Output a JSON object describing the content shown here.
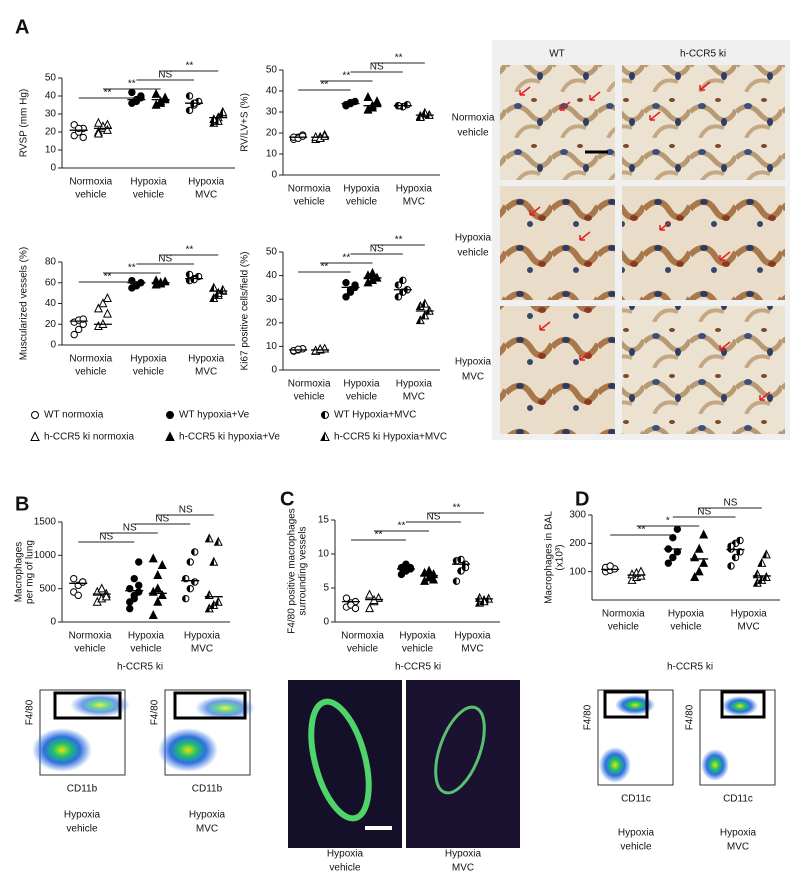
{
  "panel_labels": [
    "A",
    "B",
    "C",
    "D"
  ],
  "legend": [
    {
      "label": "WT normoxia",
      "marker": "open-circle"
    },
    {
      "label": "WT hypoxia+Ve",
      "marker": "filled-circle"
    },
    {
      "label": "WT Hypoxia+MVC",
      "marker": "half-circle"
    },
    {
      "label": "h-CCR5 ki normoxia",
      "marker": "open-triangle"
    },
    {
      "label": "h-CCR5 ki hypoxia+Ve",
      "marker": "filled-triangle"
    },
    {
      "label": "h-CCR5 ki Hypoxia+MVC",
      "marker": "half-triangle"
    }
  ],
  "micrographs": {
    "columns": [
      "WT",
      "h-CCR5 ki"
    ],
    "rows": [
      [
        "Normoxia",
        "vehicle"
      ],
      [
        "Hypoxia",
        "vehicle"
      ],
      [
        "Hypoxia",
        "MVC"
      ]
    ]
  },
  "bottom_panels": [
    {
      "title": "h-CCR5 ki",
      "images": [
        {
          "ylabel": "F4/80",
          "xlabel": "CD11b",
          "caption": [
            "Hypoxia",
            "vehicle"
          ]
        },
        {
          "ylabel": "F4/80",
          "xlabel": "CD11b",
          "caption": [
            "Hypoxia",
            "MVC"
          ]
        }
      ]
    },
    {
      "title": "h-CCR5 ki",
      "images": [
        {
          "caption": [
            "Hypoxia",
            "vehicle"
          ]
        },
        {
          "caption": [
            "Hypoxia",
            "MVC"
          ]
        }
      ]
    },
    {
      "title": "h-CCR5 ki",
      "images": [
        {
          "ylabel": "F4/80",
          "xlabel": "CD11c",
          "caption": [
            "Hypoxia",
            "vehicle"
          ]
        },
        {
          "ylabel": "F4/80",
          "xlabel": "CD11c",
          "caption": [
            "Hypoxia",
            "MVC"
          ]
        }
      ]
    }
  ],
  "chart_data": [
    {
      "type": "strip",
      "ylabel": [
        "RVSP (mm Hg)"
      ],
      "categories": [
        [
          "Normoxia",
          "vehicle"
        ],
        [
          "Hypoxia",
          "vehicle"
        ],
        [
          "Hypoxia",
          "MVC"
        ]
      ],
      "ylim": [
        0,
        50
      ],
      "yticks": [
        0,
        10,
        20,
        30,
        40,
        50
      ],
      "series": [
        {
          "color": "#000",
          "markers": [
            "open-circle",
            "filled-circle",
            "half-circle"
          ],
          "values": [
            [
              18,
              20,
              22,
              24,
              22,
              17
            ],
            [
              36,
              38,
              40,
              42,
              37,
              39
            ],
            [
              32,
              35,
              37,
              40,
              36
            ]
          ],
          "medians": [
            21,
            38,
            36
          ]
        },
        {
          "color": "#000",
          "markers": [
            "open-triangle",
            "filled-triangle",
            "half-triangle"
          ],
          "values": [
            [
              20,
              22,
              24,
              19,
              23,
              21,
              25
            ],
            [
              35,
              37,
              39,
              41,
              36,
              38
            ],
            [
              25,
              28,
              30,
              27,
              26,
              31
            ]
          ],
          "medians": [
            22,
            38,
            28
          ]
        }
      ],
      "comparisons": [
        {
          "label": "**",
          "between": [
            0,
            2
          ]
        },
        {
          "label": "**",
          "between": [
            1,
            3
          ]
        },
        {
          "label": "NS",
          "between": [
            2,
            4
          ]
        },
        {
          "label": "**",
          "between": [
            3,
            5
          ]
        }
      ]
    },
    {
      "type": "strip",
      "ylabel": [
        "RV/LV+S  (%)"
      ],
      "categories": [
        [
          "Normoxia",
          "vehicle"
        ],
        [
          "Hypoxia",
          "vehicle"
        ],
        [
          "Hypoxia",
          "MVC"
        ]
      ],
      "ylim": [
        0,
        50
      ],
      "yticks": [
        0,
        10,
        20,
        30,
        40,
        50
      ],
      "series": [
        {
          "color": "#000",
          "markers": [
            "open-circle",
            "filled-circle",
            "half-circle"
          ],
          "values": [
            [
              17,
              18,
              19,
              18,
              17.5,
              18.5
            ],
            [
              33,
              34,
              35,
              33.5,
              34.5
            ],
            [
              33,
              32.5,
              33.5,
              33
            ]
          ],
          "medians": [
            18,
            34,
            33
          ]
        },
        {
          "color": "#000",
          "markers": [
            "open-triangle",
            "filled-triangle",
            "half-triangle"
          ],
          "values": [
            [
              17,
              18,
              19,
              18,
              17.5,
              18.5
            ],
            [
              31,
              33,
              35,
              37,
              32,
              34
            ],
            [
              28,
              29,
              28.5,
              27.5,
              29.5
            ]
          ],
          "medians": [
            18,
            33,
            28.5
          ]
        }
      ],
      "comparisons": [
        {
          "label": "**",
          "between": [
            0,
            2
          ]
        },
        {
          "label": "**",
          "between": [
            1,
            3
          ]
        },
        {
          "label": "NS",
          "between": [
            2,
            4
          ]
        },
        {
          "label": "**",
          "between": [
            3,
            5
          ]
        }
      ]
    },
    {
      "type": "strip",
      "ylabel": [
        "Muscularized vessels (%)"
      ],
      "categories": [
        [
          "Normoxia",
          "vehicle"
        ],
        [
          "Hypoxia",
          "vehicle"
        ],
        [
          "Hypoxia",
          "MVC"
        ]
      ],
      "ylim": [
        0,
        80
      ],
      "yticks": [
        0,
        20,
        40,
        60,
        80
      ],
      "series": [
        {
          "color": "#000",
          "markers": [
            "open-circle",
            "filled-circle",
            "half-circle"
          ],
          "values": [
            [
              10,
              15,
              20,
              22,
              24,
              25
            ],
            [
              55,
              58,
              60,
              62,
              57
            ],
            [
              62,
              64,
              66,
              68,
              63
            ]
          ],
          "medians": [
            23,
            60,
            64
          ]
        },
        {
          "color": "#000",
          "markers": [
            "open-triangle",
            "filled-triangle",
            "half-triangle"
          ],
          "values": [
            [
              18,
              20,
              30,
              35,
              40,
              45
            ],
            [
              58,
              60,
              61,
              62,
              59
            ],
            [
              45,
              48,
              52,
              55,
              50,
              53
            ]
          ],
          "medians": [
            20,
            60,
            52
          ]
        }
      ],
      "comparisons": [
        {
          "label": "**",
          "between": [
            0,
            2
          ]
        },
        {
          "label": "**",
          "between": [
            1,
            3
          ]
        },
        {
          "label": "NS",
          "between": [
            2,
            4
          ]
        },
        {
          "label": "**",
          "between": [
            3,
            5
          ]
        }
      ]
    },
    {
      "type": "strip",
      "ylabel": [
        "Ki67 positive cells/field (%)"
      ],
      "categories": [
        [
          "Normoxia",
          "vehicle"
        ],
        [
          "Hypoxia",
          "vehicle"
        ],
        [
          "Hypoxia",
          "MVC"
        ]
      ],
      "ylim": [
        0,
        50
      ],
      "yticks": [
        0,
        10,
        20,
        30,
        40,
        50
      ],
      "series": [
        {
          "color": "#000",
          "markers": [
            "open-circle",
            "filled-circle",
            "half-circle"
          ],
          "values": [
            [
              8,
              8.5,
              9,
              8.2,
              8.8
            ],
            [
              31,
              33,
              35,
              37,
              34,
              36
            ],
            [
              31,
              33,
              34,
              36,
              38
            ]
          ],
          "medians": [
            8.5,
            35,
            34
          ]
        },
        {
          "color": "#000",
          "markers": [
            "open-triangle",
            "filled-triangle",
            "half-triangle"
          ],
          "values": [
            [
              8,
              8.5,
              9,
              8.2,
              8.8
            ],
            [
              37,
              38,
              39,
              40,
              41
            ],
            [
              21,
              23,
              25,
              27,
              28
            ]
          ],
          "medians": [
            8.5,
            39,
            25
          ]
        }
      ],
      "comparisons": [
        {
          "label": "**",
          "between": [
            0,
            2
          ]
        },
        {
          "label": "**",
          "between": [
            1,
            3
          ]
        },
        {
          "label": "NS",
          "between": [
            2,
            4
          ]
        },
        {
          "label": "**",
          "between": [
            3,
            5
          ]
        }
      ]
    },
    {
      "type": "strip",
      "ylabel": [
        "Macrophages",
        "per mg of lung"
      ],
      "categories": [
        [
          "Normoxia",
          "vehicle"
        ],
        [
          "Hypoxia",
          "vehicle"
        ],
        [
          "Hypoxia",
          "MVC"
        ]
      ],
      "ylim": [
        0,
        1500
      ],
      "yticks": [
        0,
        500,
        1000,
        1500
      ],
      "series": [
        {
          "color": "#000",
          "markers": [
            "open-circle",
            "filled-circle",
            "half-circle"
          ],
          "values": [
            [
              450,
              550,
              600,
              650,
              400,
              600
            ],
            [
              200,
              350,
              450,
              500,
              650,
              900,
              300,
              400,
              550
            ],
            [
              350,
              500,
              600,
              650,
              900,
              1050
            ]
          ],
          "medians": [
            580,
            470,
            620
          ]
        },
        {
          "color": "#000",
          "markers": [
            "open-triangle",
            "filled-triangle",
            "half-triangle"
          ],
          "values": [
            [
              300,
              350,
              420,
              450,
              500,
              380
            ],
            [
              100,
              300,
              400,
              450,
              700,
              850,
              950,
              500
            ],
            [
              200,
              250,
              300,
              400,
              900,
              1200,
              1250
            ]
          ],
          "medians": [
            420,
            430,
            380
          ]
        }
      ],
      "comparisons": [
        {
          "label": "NS",
          "between": [
            0,
            2
          ]
        },
        {
          "label": "NS",
          "between": [
            1,
            3
          ]
        },
        {
          "label": "NS",
          "between": [
            2,
            4
          ]
        },
        {
          "label": "NS",
          "between": [
            3,
            5
          ]
        }
      ]
    },
    {
      "type": "strip",
      "ylabel": [
        "F4/80 positive macrophages",
        "surrounding vessels"
      ],
      "categories": [
        [
          "Normoxia",
          "vehicle"
        ],
        [
          "Hypoxia",
          "vehicle"
        ],
        [
          "Hypoxia",
          "MVC"
        ]
      ],
      "ylim": [
        0,
        15
      ],
      "yticks": [
        0,
        5,
        10,
        15
      ],
      "series": [
        {
          "color": "#000",
          "markers": [
            "open-circle",
            "filled-circle",
            "half-circle"
          ],
          "values": [
            [
              2.2,
              2.8,
              3,
              3.5,
              2.5,
              2
            ],
            [
              7,
              7.5,
              8,
              8,
              8.5,
              7.8
            ],
            [
              6,
              7.5,
              8.5,
              9,
              9.2,
              8
            ]
          ],
          "medians": [
            3,
            7.8,
            8.5
          ]
        },
        {
          "color": "#000",
          "markers": [
            "open-triangle",
            "filled-triangle",
            "half-triangle"
          ],
          "values": [
            [
              2,
              3,
              3.5,
              4,
              3.2
            ],
            [
              6,
              6.5,
              7,
              7.2,
              7.5,
              6.2
            ],
            [
              2.8,
              3.2,
              3.4,
              3.5,
              3
            ]
          ],
          "medians": [
            3.3,
            6.8,
            3.4
          ]
        }
      ],
      "comparisons": [
        {
          "label": "**",
          "between": [
            0,
            2
          ]
        },
        {
          "label": "**",
          "between": [
            1,
            3
          ]
        },
        {
          "label": "NS",
          "between": [
            2,
            4
          ]
        },
        {
          "label": "**",
          "between": [
            3,
            5
          ]
        }
      ]
    },
    {
      "type": "strip",
      "ylabel": [
        "Macrophages in BAL",
        "(x10³)"
      ],
      "categories": [
        [
          "Normoxia",
          "vehicle"
        ],
        [
          "Hypoxia",
          "vehicle"
        ],
        [
          "Hypoxia",
          "MVC"
        ]
      ],
      "ylim": [
        0,
        300
      ],
      "yticks": [
        100,
        200,
        300
      ],
      "series": [
        {
          "color": "#000",
          "markers": [
            "open-circle",
            "filled-circle",
            "half-circle"
          ],
          "values": [
            [
              100,
              105,
              110,
              115,
              120
            ],
            [
              130,
              150,
              170,
              180,
              220,
              250
            ],
            [
              120,
              150,
              170,
              180,
              200,
              210,
              190
            ]
          ],
          "medians": [
            108,
            180,
            178
          ]
        },
        {
          "color": "#000",
          "markers": [
            "open-triangle",
            "filled-triangle",
            "half-triangle"
          ],
          "values": [
            [
              70,
              80,
              85,
              90,
              95,
              100
            ],
            [
              80,
              100,
              130,
              150,
              180,
              230
            ],
            [
              60,
              70,
              80,
              90,
              130,
              160
            ]
          ],
          "medians": [
            88,
            145,
            85
          ]
        }
      ],
      "comparisons": [
        {
          "label": "**",
          "between": [
            0,
            2
          ]
        },
        {
          "label": "*",
          "between": [
            1,
            3
          ]
        },
        {
          "label": "NS",
          "between": [
            2,
            4
          ]
        },
        {
          "label": "NS",
          "between": [
            3,
            5
          ]
        }
      ]
    }
  ]
}
